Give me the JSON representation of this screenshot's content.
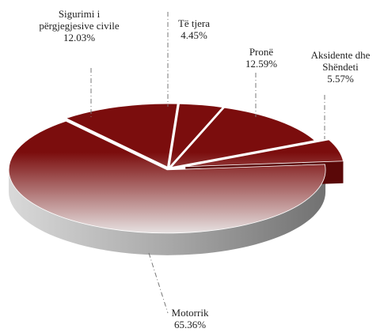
{
  "chart_data": {
    "type": "pie3d",
    "categories": [
      "Motorrik",
      "Sigurimi i përgjegjesive civile",
      "Të tjera",
      "Pronë",
      "Aksidente dhe Shëndeti"
    ],
    "values": [
      65.36,
      12.03,
      4.45,
      12.59,
      5.57
    ],
    "value_labels": [
      "65.36%",
      "12.03%",
      "4.45%",
      "12.59%",
      "5.57%"
    ],
    "color": "#7b0d0d"
  }
}
